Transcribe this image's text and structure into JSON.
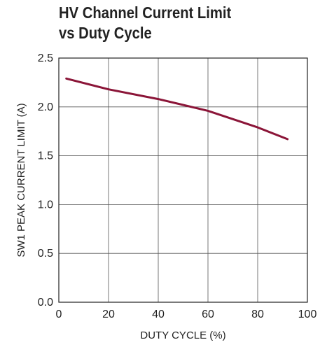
{
  "chart_data": {
    "type": "line",
    "title_line1": "HV Channel Current Limit",
    "title_line2": "vs Duty Cycle",
    "xlabel": "DUTY CYCLE (%)",
    "ylabel": "SW1 PEAK CURRENT LIMIT (A)",
    "xlim": [
      0,
      100
    ],
    "ylim": [
      0,
      2.5
    ],
    "x_ticks": [
      "0",
      "20",
      "40",
      "60",
      "80",
      "100"
    ],
    "y_ticks": [
      "0.0",
      "0.5",
      "1.0",
      "1.5",
      "2.0",
      "2.5"
    ],
    "grid": true,
    "series": [
      {
        "color": "#8b1538",
        "x": [
          3,
          20,
          40,
          60,
          80,
          92
        ],
        "y": [
          2.29,
          2.18,
          2.08,
          1.96,
          1.79,
          1.67
        ]
      }
    ]
  }
}
